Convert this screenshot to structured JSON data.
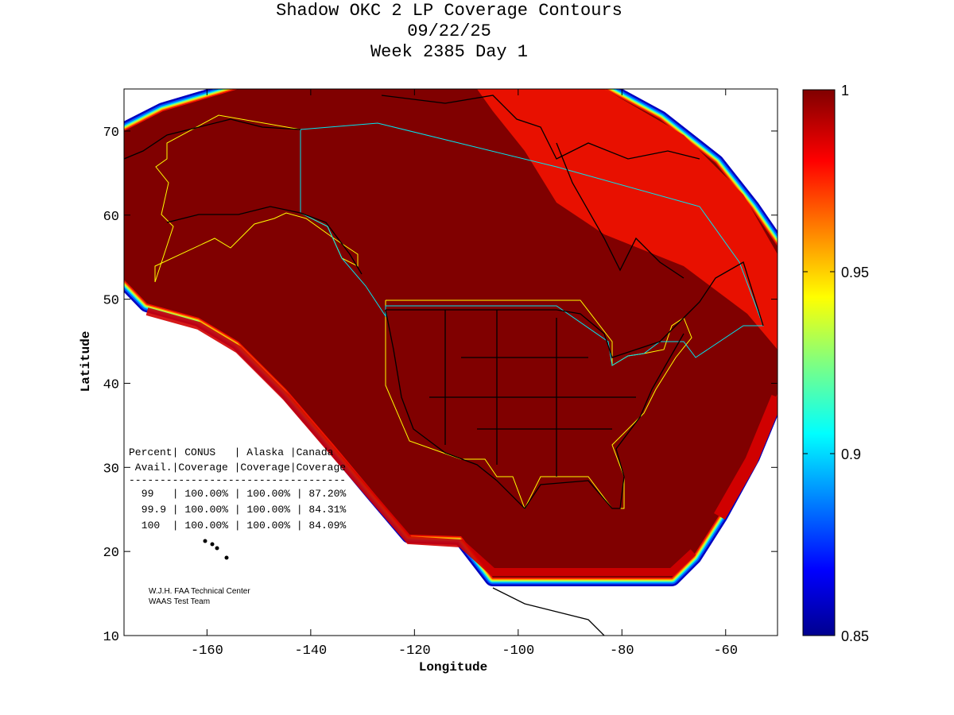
{
  "title": {
    "line1": "Shadow OKC 2 LP Coverage Contours",
    "line2": "09/22/25",
    "line3": "Week 2385 Day 1"
  },
  "chart_data": {
    "type": "heatmap",
    "subtype": "filled contour map",
    "xlabel": "Longitude",
    "ylabel": "Latitude",
    "xlim": [
      -176,
      -50
    ],
    "ylim": [
      10,
      75
    ],
    "xticks": [
      "-160",
      "-140",
      "-120",
      "-100",
      "-80",
      "-60"
    ],
    "xtick_values": [
      -160,
      -140,
      -120,
      -100,
      -80,
      -60
    ],
    "yticks": [
      "10",
      "20",
      "30",
      "40",
      "50",
      "60",
      "70"
    ],
    "ytick_values": [
      10,
      20,
      30,
      40,
      50,
      60,
      70
    ],
    "colorbar": {
      "range": [
        0.85,
        1
      ],
      "ticks": [
        "0.85",
        "0.9",
        "0.95",
        "1"
      ],
      "tick_values": [
        0.85,
        0.9,
        0.95,
        1
      ],
      "colormap": "jet"
    },
    "table": {
      "header1": "Percent| CONUS   | Alaska |Canada",
      "header2": " Avail.|Coverage |Coverage|Coverage",
      "divider": "-----------------------------------",
      "rows": [
        {
          "avail": "99",
          "conus": "100.00%",
          "alaska": "100.00%",
          "canada": "87.20%",
          "text": " 99   | 100.00% | 100.00% | 87.20%"
        },
        {
          "avail": "99.9",
          "conus": "100.00%",
          "alaska": "100.00%",
          "canada": "84.31%",
          "text": " 99.9 | 100.00% | 100.00% | 84.31%"
        },
        {
          "avail": "100",
          "conus": "100.00%",
          "alaska": "100.00%",
          "canada": "84.09%",
          "text": " 100  | 100.00% | 100.00% | 84.09%"
        }
      ]
    },
    "credits": [
      "W.J.H. FAA Technical Center",
      "WAAS Test Team"
    ],
    "colors": {
      "full": "#800000",
      "boundary_us": "#ffff00",
      "boundary_canada": "#00e5ee",
      "coast": "#000000"
    }
  }
}
